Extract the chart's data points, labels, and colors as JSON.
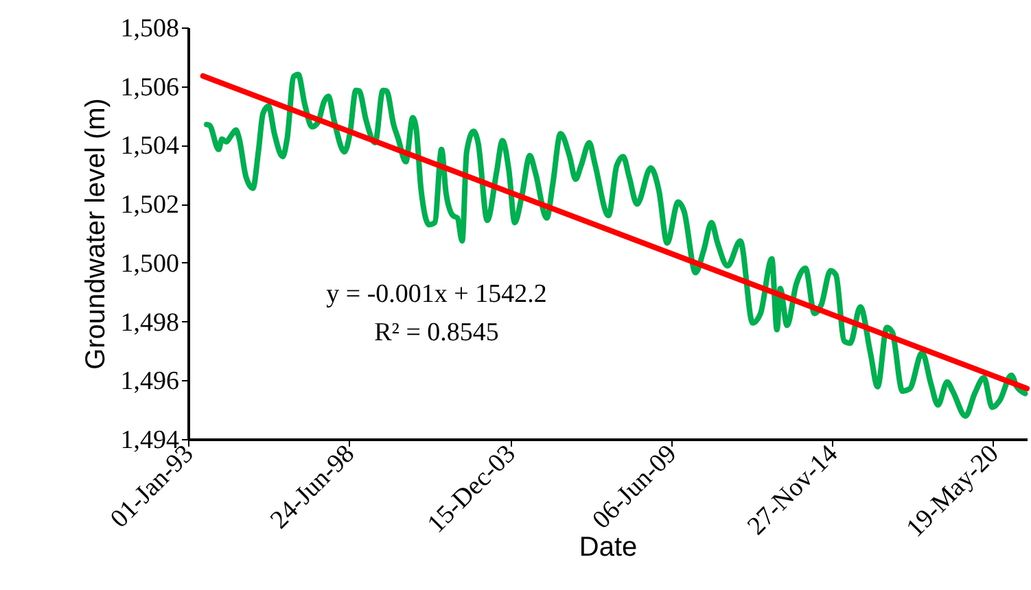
{
  "chart_data": {
    "type": "line",
    "xlabel": "Date",
    "ylabel": "Groundwater level (m)",
    "xlim": [
      "1993-01-01",
      "2021-07-11"
    ],
    "xticks": [
      {
        "value": "1993-01-01",
        "label": "01-Jan-93"
      },
      {
        "value": "1998-06-24",
        "label": "24-Jun-98"
      },
      {
        "value": "2003-12-15",
        "label": "15-Dec-03"
      },
      {
        "value": "2009-06-06",
        "label": "06-Jun-09"
      },
      {
        "value": "2014-11-27",
        "label": "27-Nov-14"
      },
      {
        "value": "2020-05-19",
        "label": "19-May-20"
      }
    ],
    "ylim": [
      1494,
      1508
    ],
    "yticks": [
      {
        "value": 1494,
        "label": "1,494"
      },
      {
        "value": 1496,
        "label": "1,496"
      },
      {
        "value": 1498,
        "label": "1,498"
      },
      {
        "value": 1500,
        "label": "1,500"
      },
      {
        "value": 1502,
        "label": "1,502"
      },
      {
        "value": 1504,
        "label": "1,504"
      },
      {
        "value": 1506,
        "label": "1,506"
      },
      {
        "value": 1508,
        "label": "1,508"
      }
    ],
    "series": [
      {
        "type": "line",
        "color": "#00b050",
        "x": [
          "1993-08-20",
          "1993-09-25",
          "1994-01-16",
          "1994-02-25",
          "1994-04-22",
          "1994-06-17",
          "1994-08-19",
          "1994-09-27",
          "1994-12-21",
          "1995-03-17",
          "1995-05-24",
          "1995-07-21",
          "1995-09-27",
          "1995-12-09",
          "1996-03-20",
          "1996-05-16",
          "1996-08-05",
          "1996-09-30",
          "1996-12-19",
          "1997-03-20",
          "1997-06-04",
          "1997-08-16",
          "1997-10-11",
          "1997-12-18",
          "1998-04-27",
          "1998-07-04",
          "1998-09-16",
          "1998-10-27",
          "1999-01-20",
          "1999-05-13",
          "1999-08-18",
          "1999-10-03",
          "1999-12-28",
          "2000-02-22",
          "2000-05-29",
          "2000-08-22",
          "2000-10-05",
          "2000-12-02",
          "2001-03-14",
          "2001-05-22",
          "2001-08-15",
          "2001-10-10",
          "2002-01-04",
          "2002-03-01",
          "2002-04-28",
          "2002-06-23",
          "2002-09-17",
          "2002-11-12",
          "2003-03-06",
          "2003-06-29",
          "2003-09-10",
          "2003-11-29",
          "2004-02-10",
          "2004-05-05",
          "2004-08-16",
          "2004-10-23",
          "2005-03-14",
          "2005-05-28",
          "2005-08-31",
          "2005-12-23",
          "2006-03-07",
          "2006-05-14",
          "2006-08-24",
          "2006-10-31",
          "2007-04-20",
          "2007-07-31",
          "2007-10-19",
          "2008-01-01",
          "2008-04-08",
          "2008-09-25",
          "2009-01-05",
          "2009-04-17",
          "2009-09-01",
          "2009-11-13",
          "2010-04-05",
          "2010-07-16",
          "2010-10-20",
          "2011-01-03",
          "2011-05-07",
          "2011-10-13",
          "2012-03-14",
          "2012-06-19",
          "2012-11-07",
          "2013-01-10",
          "2013-02-19",
          "2013-05-15",
          "2013-09-07",
          "2013-12-30",
          "2014-04-21",
          "2014-07-15",
          "2014-11-06",
          "2015-01-13",
          "2015-04-26",
          "2015-07-08",
          "2015-11-12",
          "2016-03-15",
          "2016-06-13",
          "2016-10-05",
          "2016-12-12",
          "2017-04-17",
          "2017-07-17",
          "2017-12-18",
          "2018-04-08",
          "2018-07-02",
          "2018-10-25",
          "2019-01-02",
          "2019-06-10",
          "2019-10-02",
          "2020-01-24",
          "2020-05-06",
          "2020-08-09",
          "2020-12-30",
          "2021-03-08",
          "2021-06-19"
        ],
        "values": [
          1504.7,
          1504.67,
          1503.85,
          1504.2,
          1504.11,
          1504.31,
          1504.51,
          1504.23,
          1502.92,
          1502.53,
          1503.77,
          1505.08,
          1505.32,
          1504.39,
          1503.61,
          1504.23,
          1506.33,
          1506.4,
          1505.4,
          1504.62,
          1504.78,
          1505.47,
          1505.66,
          1504.85,
          1503.77,
          1504.39,
          1505.86,
          1505.84,
          1504.85,
          1504.08,
          1505.86,
          1505.84,
          1504.7,
          1504.23,
          1503.43,
          1504.93,
          1504.54,
          1502.53,
          1501.29,
          1501.36,
          1503.85,
          1502.37,
          1501.6,
          1501.52,
          1500.74,
          1503.77,
          1504.47,
          1504.08,
          1501.44,
          1503.07,
          1504.15,
          1503.15,
          1501.36,
          1502.22,
          1503.64,
          1503.07,
          1501.52,
          1502.68,
          1504.39,
          1503.61,
          1502.84,
          1503.3,
          1504.08,
          1503.38,
          1501.6,
          1503.3,
          1503.61,
          1502.92,
          1501.99,
          1503.22,
          1502.45,
          1500.67,
          1502.06,
          1501.75,
          1499.66,
          1500.43,
          1501.36,
          1500.67,
          1499.89,
          1500.74,
          1497.95,
          1498.27,
          1500.13,
          1497.72,
          1499.12,
          1497.87,
          1499.27,
          1499.81,
          1498.27,
          1498.57,
          1499.73,
          1499.58,
          1497.33,
          1497.26,
          1498.5,
          1496.94,
          1495.78,
          1497.8,
          1497.64,
          1495.63,
          1495.71,
          1496.94,
          1495.86,
          1495.16,
          1495.94,
          1495.63,
          1494.78,
          1495.55,
          1496.09,
          1495.08,
          1495.32,
          1496.17,
          1495.78,
          1495.55
        ]
      },
      {
        "type": "line",
        "color": "#ff0000",
        "x": [
          "1993-07-05",
          "2021-07-11"
        ],
        "values": [
          1506.35,
          1495.72
        ]
      }
    ],
    "annotations": [
      "y = -0.001x + 1542.2",
      "R² = 0.8545"
    ]
  }
}
